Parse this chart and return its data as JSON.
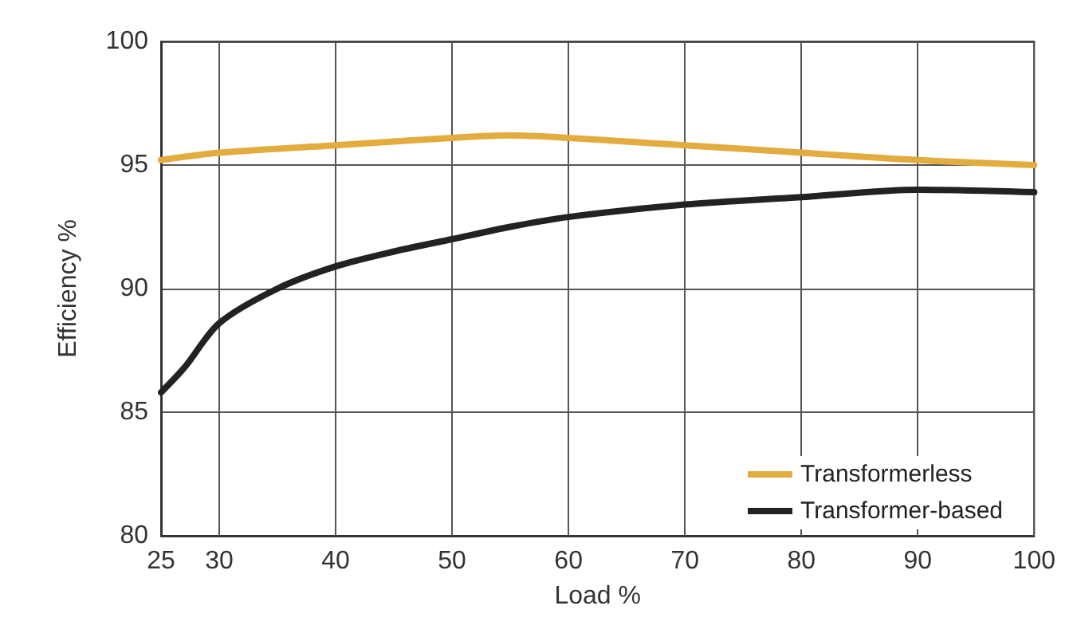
{
  "chart_data": {
    "type": "line",
    "xlabel": "Load %",
    "ylabel": "Efficiency %",
    "xlim": [
      25,
      100
    ],
    "xticks": [
      25,
      30,
      40,
      50,
      60,
      70,
      80,
      90,
      100
    ],
    "ylim": [
      80,
      100
    ],
    "yticks": [
      80,
      85,
      90,
      95,
      100
    ],
    "grid": true,
    "legend": "bottom right",
    "marker": "none",
    "line_style": "solid",
    "series": [
      {
        "name": "Transformerless",
        "color": "#e2ac3f",
        "x": [
          25,
          30,
          40,
          50,
          55,
          60,
          70,
          80,
          90,
          100
        ],
        "values": [
          95.2,
          95.5,
          95.8,
          96.1,
          96.2,
          96.1,
          95.8,
          95.5,
          95.2,
          95.0
        ]
      },
      {
        "name": "Transformer-based",
        "color": "#222222",
        "x": [
          25,
          27,
          30,
          35,
          40,
          45,
          50,
          55,
          60,
          70,
          80,
          90,
          100
        ],
        "values": [
          85.8,
          86.8,
          88.6,
          90.0,
          90.9,
          91.5,
          92.0,
          92.5,
          92.9,
          93.4,
          93.7,
          94.0,
          93.9
        ]
      }
    ]
  }
}
